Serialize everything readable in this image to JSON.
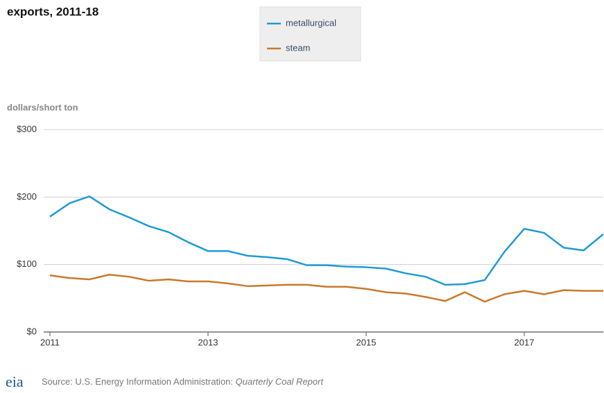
{
  "chart_data": {
    "type": "line",
    "title": "exports, 2011-18",
    "ylabel": "dollars/short ton",
    "source": "Source: U.S. Energy Information Administration: ",
    "source_report": "Quarterly Coal Report",
    "logo": "eia",
    "legend": "top",
    "grid": true,
    "x": [
      2011,
      2011.25,
      2011.5,
      2011.75,
      2012,
      2012.25,
      2012.5,
      2012.75,
      2013,
      2013.25,
      2013.5,
      2013.75,
      2014,
      2014.25,
      2014.5,
      2014.75,
      2015,
      2015.25,
      2015.5,
      2015.75,
      2016,
      2016.25,
      2016.5,
      2016.75,
      2017,
      2017.25,
      2017.5,
      2017.75,
      2018
    ],
    "xlim": [
      2011,
      2018
    ],
    "xticks": [
      2011,
      2013,
      2015,
      2017
    ],
    "ylim": [
      0,
      300
    ],
    "yticks": [
      {
        "value": 0,
        "label": "$0"
      },
      {
        "value": 100,
        "label": "$100"
      },
      {
        "value": 200,
        "label": "$200"
      },
      {
        "value": 300,
        "label": "$300"
      }
    ],
    "series": [
      {
        "name": "metallurgical",
        "color": "#1f9ad6",
        "values": [
          171,
          191,
          201,
          182,
          170,
          157,
          148,
          133,
          120,
          120,
          113,
          111,
          108,
          99,
          99,
          97,
          96,
          94,
          87,
          82,
          70,
          71,
          77,
          119,
          153,
          147,
          125,
          121,
          145
        ]
      },
      {
        "name": "steam",
        "color": "#c8792b",
        "values": [
          84,
          80,
          78,
          85,
          82,
          76,
          78,
          75,
          75,
          72,
          68,
          69,
          70,
          70,
          67,
          67,
          64,
          59,
          57,
          52,
          46,
          59,
          45,
          56,
          61,
          56,
          62,
          61,
          61
        ]
      }
    ]
  }
}
